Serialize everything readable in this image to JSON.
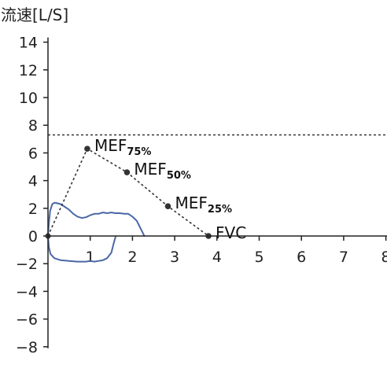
{
  "chart_data": {
    "type": "line",
    "title": "",
    "ylabel": "流速[L/S]",
    "xlabel": "",
    "xlim": [
      0,
      8
    ],
    "ylim": [
      -8,
      14
    ],
    "x_ticks": [
      1,
      2,
      3,
      4,
      5,
      6,
      7,
      8
    ],
    "y_ticks": [
      -8,
      -6,
      -4,
      -2,
      0,
      2,
      4,
      6,
      8,
      10,
      12,
      14
    ],
    "x_tick_labels": [
      "1",
      "2",
      "3",
      "4",
      "5",
      "6",
      "7",
      "8"
    ],
    "y_tick_labels": [
      "−8",
      "−6",
      "−4",
      "−2",
      "0",
      "2",
      "4",
      "6",
      "8",
      "10",
      "12",
      "14"
    ],
    "reference_line": {
      "y": 7.3,
      "style": "dashed"
    },
    "predicted_points": [
      {
        "label": "MEF",
        "sub": "75%",
        "x": 0.93,
        "y": 6.3
      },
      {
        "label": "MEF",
        "sub": "50%",
        "x": 1.87,
        "y": 4.6
      },
      {
        "label": "MEF",
        "sub": "25%",
        "x": 2.84,
        "y": 2.15
      },
      {
        "label": "FVC",
        "sub": "",
        "x": 3.8,
        "y": 0.0
      }
    ],
    "predicted_line_start": {
      "x": 0.0,
      "y": 0.0
    },
    "series": [
      {
        "color": "#4a67a6",
        "style": "solid",
        "points": [
          [
            0.0,
            0.0
          ],
          [
            0.02,
            0.9
          ],
          [
            0.05,
            1.8
          ],
          [
            0.1,
            2.3
          ],
          [
            0.15,
            2.4
          ],
          [
            0.2,
            2.38
          ],
          [
            0.3,
            2.3
          ],
          [
            0.4,
            2.1
          ],
          [
            0.5,
            1.9
          ],
          [
            0.6,
            1.6
          ],
          [
            0.7,
            1.4
          ],
          [
            0.8,
            1.3
          ],
          [
            0.9,
            1.35
          ],
          [
            1.0,
            1.5
          ],
          [
            1.1,
            1.6
          ],
          [
            1.2,
            1.6
          ],
          [
            1.3,
            1.7
          ],
          [
            1.4,
            1.65
          ],
          [
            1.5,
            1.7
          ],
          [
            1.6,
            1.65
          ],
          [
            1.7,
            1.65
          ],
          [
            1.8,
            1.6
          ],
          [
            1.9,
            1.6
          ],
          [
            2.0,
            1.4
          ],
          [
            2.1,
            1.1
          ],
          [
            2.15,
            0.8
          ],
          [
            2.2,
            0.5
          ],
          [
            2.25,
            0.2
          ],
          [
            2.28,
            0.0
          ]
        ]
      },
      {
        "color": "#4a67a6",
        "style": "solid",
        "points": [
          [
            0.0,
            0.0
          ],
          [
            0.02,
            -0.8
          ],
          [
            0.06,
            -1.3
          ],
          [
            0.15,
            -1.6
          ],
          [
            0.3,
            -1.75
          ],
          [
            0.5,
            -1.8
          ],
          [
            0.7,
            -1.85
          ],
          [
            0.9,
            -1.85
          ],
          [
            1.0,
            -1.8
          ],
          [
            1.1,
            -1.85
          ],
          [
            1.2,
            -1.8
          ],
          [
            1.3,
            -1.75
          ],
          [
            1.4,
            -1.6
          ],
          [
            1.5,
            -1.2
          ],
          [
            1.55,
            -0.6
          ],
          [
            1.6,
            -0.05
          ]
        ]
      }
    ]
  }
}
